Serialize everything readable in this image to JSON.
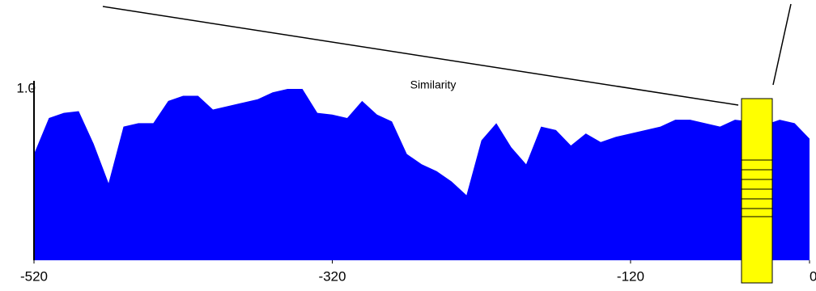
{
  "chart_data": {
    "type": "area",
    "title": "Similarity",
    "x": [
      -520,
      -510,
      -500,
      -490,
      -480,
      -470,
      -460,
      -450,
      -440,
      -430,
      -420,
      -410,
      -400,
      -390,
      -380,
      -370,
      -360,
      -350,
      -340,
      -330,
      -320,
      -310,
      -300,
      -290,
      -280,
      -270,
      -260,
      -250,
      -240,
      -230,
      -220,
      -210,
      -200,
      -190,
      -180,
      -170,
      -160,
      -150,
      -140,
      -130,
      -120,
      -110,
      -100,
      -90,
      -80,
      -70,
      -60,
      -50,
      -40,
      -30,
      -20,
      -10,
      0
    ],
    "series": [
      {
        "color": "#0000ff",
        "values": [
          0.62,
          0.83,
          0.86,
          0.87,
          0.68,
          0.45,
          0.78,
          0.8,
          0.8,
          0.93,
          0.96,
          0.96,
          0.88,
          0.9,
          0.92,
          0.94,
          0.98,
          1.0,
          1.0,
          0.86,
          0.85,
          0.83,
          0.93,
          0.85,
          0.81,
          0.62,
          0.56,
          0.52,
          0.46,
          0.38,
          0.7,
          0.8,
          0.66,
          0.56,
          0.78,
          0.76,
          0.67,
          0.74,
          0.69,
          0.72,
          0.74,
          0.76,
          0.78,
          0.82,
          0.82,
          0.8,
          0.78,
          0.82,
          0.81,
          0.79,
          0.82,
          0.8,
          0.71
        ]
      }
    ],
    "xlim": [
      -520,
      0
    ],
    "xticks": [
      -520,
      -320,
      -120,
      0
    ],
    "ylim": [
      0,
      1
    ],
    "yticks": [
      {
        "value": 1,
        "label": "1.0"
      }
    ]
  }
}
